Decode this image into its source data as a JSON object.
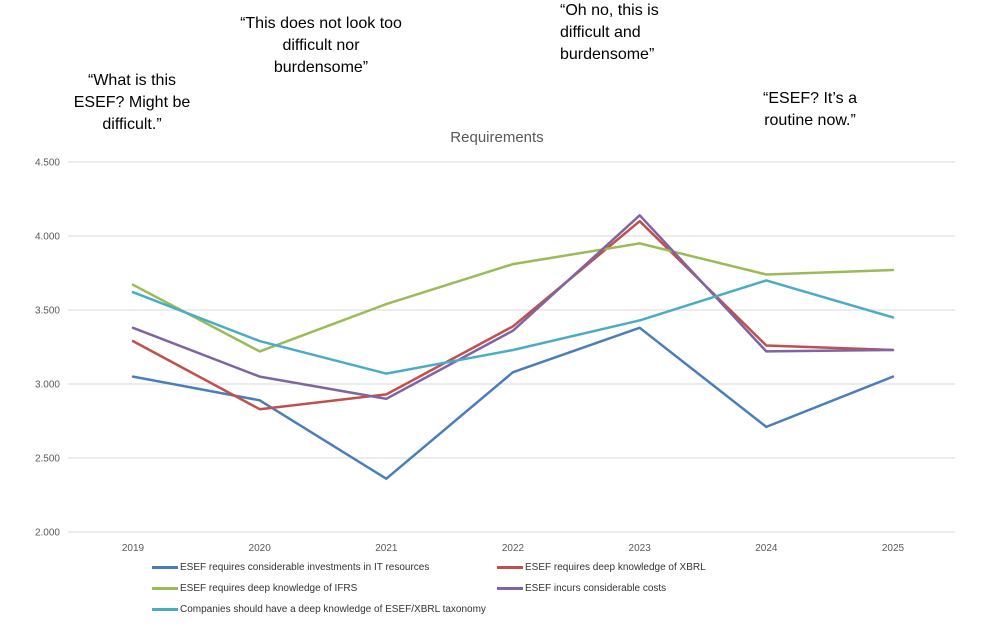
{
  "quotes": [
    {
      "lines": [
        "“What is this",
        "ESEF? Might be",
        "difficult.”"
      ]
    },
    {
      "lines": [
        "“This does not look too",
        "difficult nor",
        "burdensome”"
      ]
    },
    {
      "lines": [
        "“Oh no, this is",
        "difficult and",
        "burdensome”"
      ]
    },
    {
      "lines": [
        "“ESEF? It’s a",
        "routine now.”"
      ]
    }
  ],
  "chart_data": {
    "type": "line",
    "title": "Requirements",
    "xlabel": "",
    "ylabel": "",
    "categories": [
      "2019",
      "2020",
      "2021",
      "2022",
      "2023",
      "2024",
      "2025"
    ],
    "ylim": [
      2.0,
      4.5
    ],
    "yticks": [
      "2.000",
      "2.500",
      "3.000",
      "3.500",
      "4.000",
      "4.500"
    ],
    "grid": true,
    "legend_position": "bottom",
    "series": [
      {
        "name": "ESEF requires considerable investments in IT resources",
        "color": "#4a7ebb",
        "values": [
          3.05,
          2.89,
          2.36,
          3.08,
          3.38,
          2.71,
          3.05
        ]
      },
      {
        "name": "ESEF requires deep knowledge of XBRL",
        "color": "#c0504d",
        "values": [
          3.29,
          2.83,
          2.93,
          3.39,
          4.1,
          3.26,
          3.23
        ]
      },
      {
        "name": "ESEF requires deep knowledge of IFRS",
        "color": "#9bbb59",
        "values": [
          3.67,
          3.22,
          3.54,
          3.81,
          3.95,
          3.74,
          3.77
        ]
      },
      {
        "name": "ESEF incurs considerable costs",
        "color": "#8064a2",
        "values": [
          3.38,
          3.05,
          2.9,
          3.36,
          4.14,
          3.22,
          3.23
        ]
      },
      {
        "name": "Companies should have a deep knowledge of ESEF/XBRL taxonomy",
        "color": "#4bacc6",
        "values": [
          3.62,
          3.29,
          3.07,
          3.23,
          3.43,
          3.7,
          3.45
        ]
      }
    ]
  }
}
